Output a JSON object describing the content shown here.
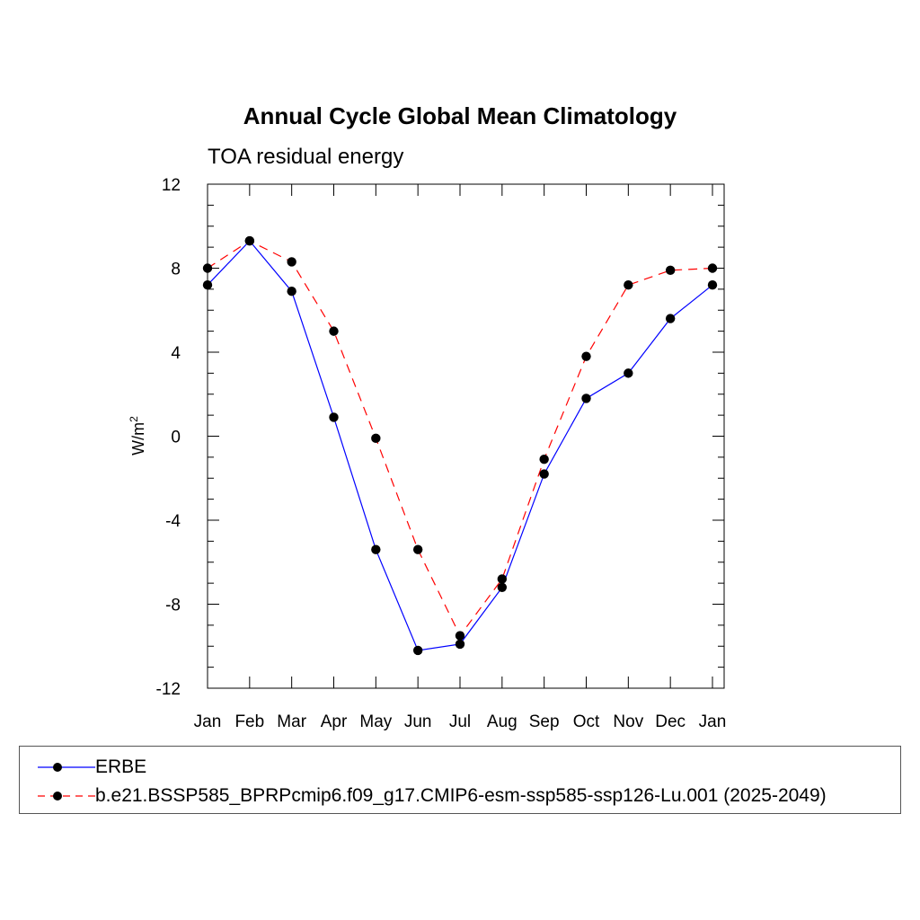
{
  "chart_data": {
    "type": "line",
    "title": "Annual Cycle Global Mean Climatology",
    "subtitle": "TOA residual energy",
    "ylabel": "W/m",
    "ylabel_superscript": "2",
    "ylim": [
      -12,
      12
    ],
    "yticks": [
      "12",
      "8",
      "4",
      "0",
      "-4",
      "-8",
      "-12"
    ],
    "categories": [
      "Jan",
      "Feb",
      "Mar",
      "Apr",
      "May",
      "Jun",
      "Jul",
      "Aug",
      "Sep",
      "Oct",
      "Nov",
      "Dec",
      "Jan"
    ],
    "series": [
      {
        "name": "ERBE",
        "color": "#0000ff",
        "dashed": false,
        "values": [
          7.2,
          9.3,
          6.9,
          0.9,
          -5.4,
          -10.2,
          -9.9,
          -7.2,
          -1.8,
          1.8,
          3.0,
          5.6,
          7.2
        ]
      },
      {
        "name": "b.e21.BSSP585_BPRPcmip6.f09_g17.CMIP6-esm-ssp585-ssp126-Lu.001 (2025-2049)",
        "color": "#ff0000",
        "dashed": true,
        "values": [
          8.0,
          9.3,
          8.3,
          5.0,
          -0.1,
          -5.4,
          -9.5,
          -6.8,
          -1.1,
          3.8,
          7.2,
          7.9,
          8.0
        ]
      }
    ],
    "grid": false,
    "legend_position": "bottom"
  }
}
